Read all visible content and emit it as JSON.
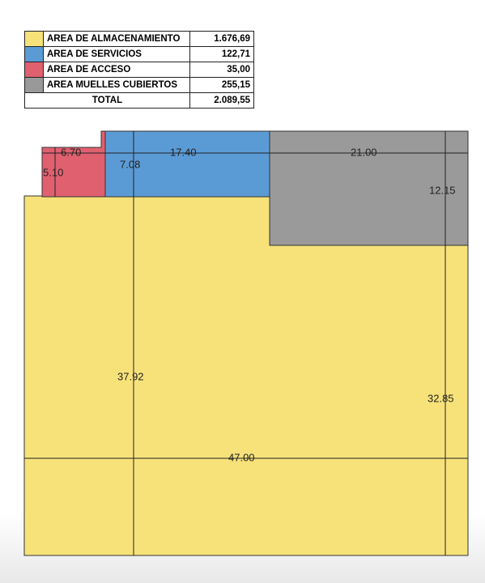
{
  "legend": {
    "rows": [
      {
        "label": "AREA DE ALMACENAMIENTO",
        "value": "1.676,69"
      },
      {
        "label": "AREA DE SERVICIOS",
        "value": "122,71"
      },
      {
        "label": "AREA DE ACCESO",
        "value": "35,00"
      },
      {
        "label": "AREA MUELLES CUBIERTOS",
        "value": "255,15"
      }
    ],
    "total": {
      "label": "TOTAL",
      "value": "2.089,55"
    }
  },
  "dimensions": [
    "6.70",
    "5.10",
    "7.08",
    "17.40",
    "21.00",
    "12.15",
    "37.92",
    "32.85",
    "47.00"
  ]
}
